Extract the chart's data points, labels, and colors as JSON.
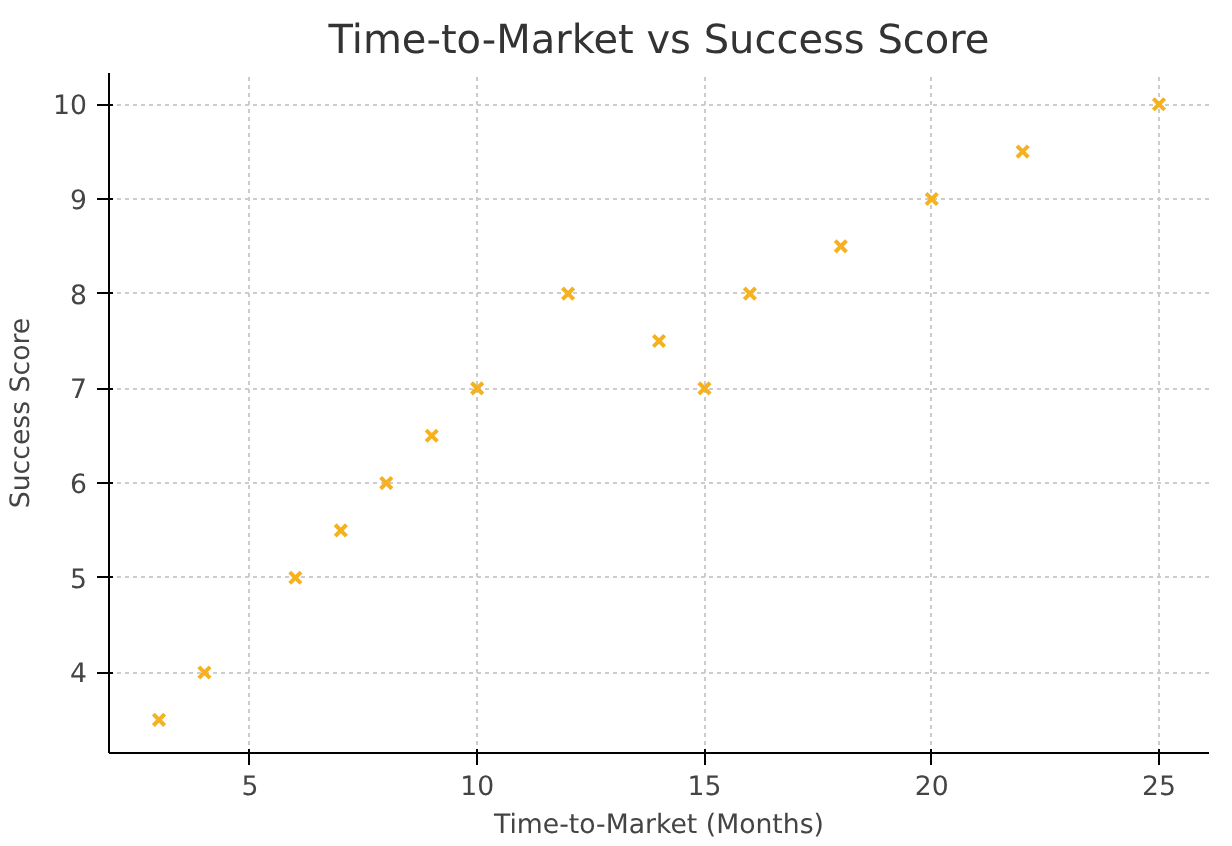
{
  "chart_data": {
    "type": "scatter",
    "title": "Time-to-Market vs Success Score",
    "xlabel": "Time-to-Market (Months)",
    "ylabel": "Success Score",
    "x": [
      3,
      4,
      6,
      7,
      8,
      9,
      10,
      12,
      14,
      15,
      16,
      18,
      20,
      22,
      25
    ],
    "values": [
      3.5,
      4,
      5,
      5.5,
      6,
      6.5,
      7,
      8,
      7.5,
      7,
      8,
      8.5,
      9,
      9.5,
      10
    ],
    "color": "#f5b120",
    "marker": "cross",
    "xlim": [
      1.9,
      26.1
    ],
    "ylim": [
      3.15,
      10.33
    ],
    "xticks": [
      5,
      10,
      15,
      20,
      25
    ],
    "yticks": [
      4,
      5,
      6,
      7,
      8,
      9,
      10
    ],
    "grid": true
  }
}
